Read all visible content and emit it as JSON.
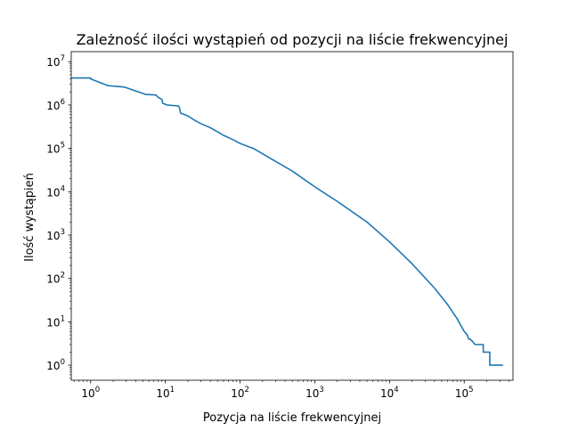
{
  "chart_data": {
    "type": "line",
    "title": "Zależność ilości wystąpień od pozycji na liście frekwencyjnej",
    "xlabel": "Pozycja na liście frekwencyjnej",
    "ylabel": "Ilość wystąpień",
    "xscale": "log",
    "yscale": "log",
    "xlim": [
      0.55,
      450000
    ],
    "ylim": [
      0.45,
      17000000
    ],
    "grid": false,
    "legend": "none",
    "x_ticks": [
      {
        "value": 1,
        "base": "10",
        "exp": "0"
      },
      {
        "value": 10,
        "base": "10",
        "exp": "1"
      },
      {
        "value": 100,
        "base": "10",
        "exp": "2"
      },
      {
        "value": 1000,
        "base": "10",
        "exp": "3"
      },
      {
        "value": 10000,
        "base": "10",
        "exp": "4"
      },
      {
        "value": 100000,
        "base": "10",
        "exp": "5"
      }
    ],
    "y_ticks": [
      {
        "value": 1,
        "base": "10",
        "exp": "0"
      },
      {
        "value": 10,
        "base": "10",
        "exp": "1"
      },
      {
        "value": 100,
        "base": "10",
        "exp": "2"
      },
      {
        "value": 1000,
        "base": "10",
        "exp": "3"
      },
      {
        "value": 10000,
        "base": "10",
        "exp": "4"
      },
      {
        "value": 100000,
        "base": "10",
        "exp": "5"
      },
      {
        "value": 1000000,
        "base": "10",
        "exp": "6"
      },
      {
        "value": 10000000,
        "base": "10",
        "exp": "7"
      }
    ],
    "series": [
      {
        "color": "#1f77b4",
        "points": [
          [
            0.55,
            4200000
          ],
          [
            1.0,
            4200000
          ],
          [
            1.0,
            4000000
          ],
          [
            1.7,
            2800000
          ],
          [
            2.8,
            2600000
          ],
          [
            3.0,
            2500000
          ],
          [
            5.5,
            1750000
          ],
          [
            7.5,
            1700000
          ],
          [
            8.0,
            1500000
          ],
          [
            9.0,
            1350000
          ],
          [
            9.2,
            1100000
          ],
          [
            10.5,
            1000000
          ],
          [
            15,
            950000
          ],
          [
            15.5,
            850000
          ],
          [
            16,
            650000
          ],
          [
            20,
            560000
          ],
          [
            25,
            440000
          ],
          [
            30,
            370000
          ],
          [
            40,
            300000
          ],
          [
            50,
            240000
          ],
          [
            60,
            200000
          ],
          [
            80,
            160000
          ],
          [
            100,
            130000
          ],
          [
            150,
            100000
          ],
          [
            200,
            75000
          ],
          [
            300,
            50000
          ],
          [
            500,
            30000
          ],
          [
            700,
            20000
          ],
          [
            1000,
            13000
          ],
          [
            2000,
            6000
          ],
          [
            5000,
            2000
          ],
          [
            10000,
            700
          ],
          [
            20000,
            220
          ],
          [
            40000,
            60
          ],
          [
            60000,
            25
          ],
          [
            80000,
            12
          ],
          [
            100000,
            6
          ],
          [
            110000,
            5
          ],
          [
            115000,
            4
          ],
          [
            120000,
            4
          ],
          [
            130000,
            3.5
          ],
          [
            140000,
            3
          ],
          [
            180000,
            3
          ],
          [
            180000,
            2
          ],
          [
            220000,
            2
          ],
          [
            220000,
            1
          ],
          [
            330000,
            1
          ]
        ]
      }
    ]
  }
}
